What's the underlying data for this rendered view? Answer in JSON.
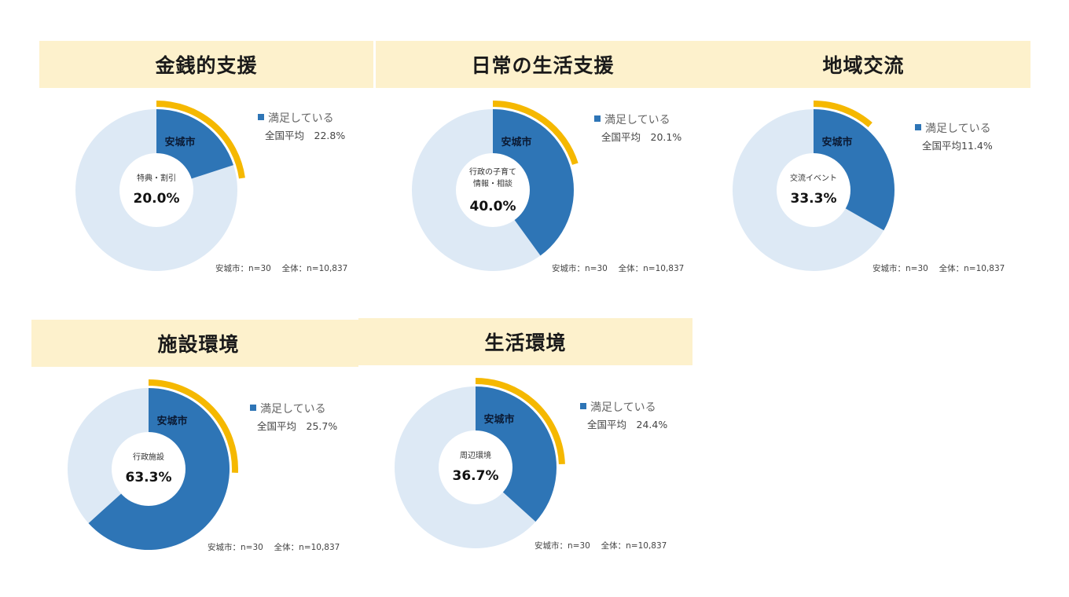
{
  "chart_data": [
    {
      "type": "pie",
      "title": "金銭的支援",
      "city_label": "安城市",
      "center_label": [
        "特典・割引"
      ],
      "value": 20.0,
      "value_label": "20.0%",
      "national_value": 22.8,
      "legend_label": "満足している",
      "national_label": "全国平均　22.8%",
      "note": "安城市：n=30　 全体：n=10,837",
      "colors": {
        "city": "#2e75b6",
        "remainder": "#dde9f5",
        "national": "#f5b800"
      }
    },
    {
      "type": "pie",
      "title": "日常の生活支援",
      "city_label": "安城市",
      "center_label": [
        "行政の子育て",
        "情報・相談"
      ],
      "value": 40.0,
      "value_label": "40.0%",
      "national_value": 20.1,
      "legend_label": "満足している",
      "national_label": "全国平均　20.1%",
      "note": "安城市：n=30　 全体：n=10,837",
      "colors": {
        "city": "#2e75b6",
        "remainder": "#dde9f5",
        "national": "#f5b800"
      }
    },
    {
      "type": "pie",
      "title": "地域交流",
      "city_label": "安城市",
      "center_label": [
        "交流イベント"
      ],
      "value": 33.3,
      "value_label": "33.3%",
      "national_value": 11.4,
      "legend_label": "満足している",
      "national_label": "全国平均11.4%",
      "note": "安城市：n=30　 全体：n=10,837",
      "colors": {
        "city": "#2e75b6",
        "remainder": "#dde9f5",
        "national": "#f5b800"
      }
    },
    {
      "type": "pie",
      "title": "施設環境",
      "city_label": "安城市",
      "center_label": [
        "行政施設"
      ],
      "value": 63.3,
      "value_label": "63.3%",
      "national_value": 25.7,
      "legend_label": "満足している",
      "national_label": "全国平均　25.7%",
      "note": "安城市：n=30　 全体：n=10,837",
      "colors": {
        "city": "#2e75b6",
        "remainder": "#dde9f5",
        "national": "#f5b800"
      }
    },
    {
      "type": "pie",
      "title": "生活環境",
      "city_label": "安城市",
      "center_label": [
        "周辺環境"
      ],
      "value": 36.7,
      "value_label": "36.7%",
      "national_value": 24.4,
      "legend_label": "満足している",
      "national_label": "全国平均　24.4%",
      "note": "安城市：n=30　 全体：n=10,837",
      "colors": {
        "city": "#2e75b6",
        "remainder": "#dde9f5",
        "national": "#f5b800"
      }
    }
  ]
}
